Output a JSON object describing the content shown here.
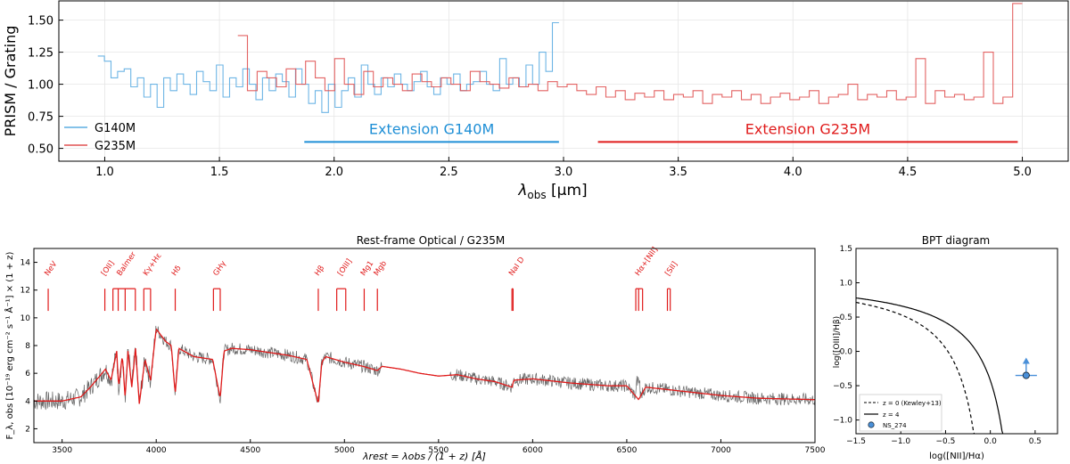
{
  "chart_data": [
    {
      "type": "line",
      "ylabel": "PRISM / Grating",
      "xlabel_main": "λ",
      "xlabel_sub": "obs",
      "xlabel_unit": " [μm]",
      "xlim": [
        0.8,
        5.2
      ],
      "ylim": [
        0.4,
        1.65
      ],
      "xticks": [
        "1.0",
        "1.5",
        "2.0",
        "2.5",
        "3.0",
        "3.5",
        "4.0",
        "4.5",
        "5.0"
      ],
      "yticks": [
        "0.50",
        "0.75",
        "1.00",
        "1.25",
        "1.50"
      ],
      "grid": true,
      "legend_position": "lower-left",
      "series": [
        {
          "name": "G140M",
          "color": "#5dade2",
          "x_range": [
            0.97,
            2.98
          ],
          "values": [
            1.22,
            1.18,
            1.05,
            1.1,
            1.12,
            0.98,
            1.05,
            0.9,
            1.0,
            0.82,
            1.05,
            0.95,
            1.08,
            1.0,
            0.92,
            1.1,
            1.02,
            0.95,
            1.15,
            0.9,
            1.05,
            0.98,
            1.12,
            1.0,
            0.88,
            1.05,
            0.95,
            1.08,
            1.02,
            0.9,
            1.12,
            1.0,
            0.85,
            0.95,
            0.78,
            1.0,
            0.82,
            0.95,
            1.05,
            0.9,
            1.15,
            1.0,
            0.92,
            1.05,
            0.98,
            1.08,
            1.0,
            0.95,
            1.02,
            1.1,
            0.98,
            0.92,
            1.05,
            1.0,
            1.08,
            0.95,
            1.0,
            1.02,
            1.1,
            1.0,
            0.95,
            1.2,
            1.0,
            1.05,
            0.98,
            1.15,
            1.0,
            1.25,
            1.1,
            1.48
          ]
        },
        {
          "name": "G235M",
          "color": "#e05252",
          "x_range": [
            1.58,
            5.0
          ],
          "values": [
            1.38,
            0.95,
            1.1,
            1.05,
            0.98,
            1.12,
            1.0,
            1.18,
            1.05,
            0.95,
            1.2,
            1.0,
            0.92,
            1.1,
            0.98,
            1.05,
            1.0,
            0.95,
            1.08,
            1.02,
            0.98,
            1.05,
            1.0,
            0.95,
            1.1,
            1.02,
            1.0,
            0.97,
            1.05,
            0.98,
            1.0,
            0.95,
            1.02,
            0.98,
            1.0,
            0.95,
            0.92,
            0.98,
            0.9,
            0.95,
            0.88,
            0.93,
            0.9,
            0.95,
            0.88,
            0.92,
            0.9,
            0.95,
            0.85,
            0.92,
            0.9,
            0.95,
            0.88,
            0.92,
            0.85,
            0.9,
            0.93,
            0.88,
            0.9,
            0.95,
            0.85,
            0.9,
            0.92,
            1.0,
            0.88,
            0.92,
            0.9,
            0.95,
            0.88,
            0.9,
            1.2,
            0.85,
            0.95,
            0.9,
            0.92,
            0.88,
            0.9,
            1.25,
            0.85,
            0.9,
            1.63
          ]
        }
      ],
      "annotations": [
        {
          "text": "Extension G140M",
          "color": "#1f8fd6",
          "x_range": [
            1.87,
            2.98
          ],
          "y": 0.55
        },
        {
          "text": "Extension G235M",
          "color": "#e01b1b",
          "x_range": [
            3.15,
            4.98
          ],
          "y": 0.55
        }
      ]
    },
    {
      "type": "line",
      "title": "Rest-frame Optical / G235M",
      "ylabel": "F_λ, obs [10⁻¹⁹ erg cm⁻² s⁻¹ Å⁻¹] × (1 + z)",
      "xlabel": "λrest = λobs / (1 + z) [Å]",
      "xlim": [
        3350,
        7500
      ],
      "ylim": [
        1,
        15
      ],
      "xticks": [
        "3500",
        "4000",
        "4500",
        "5000",
        "5500",
        "6000",
        "6500",
        "7000",
        "7500"
      ],
      "yticks": [
        "2",
        "4",
        "6",
        "8",
        "10",
        "12",
        "14"
      ],
      "series": [
        {
          "name": "data",
          "color": "#333333"
        },
        {
          "name": "model",
          "color": "#e01b1b",
          "x": [
            3350,
            3500,
            3600,
            3650,
            3700,
            3730,
            3760,
            3790,
            3800,
            3820,
            3835,
            3850,
            3870,
            3890,
            3910,
            3940,
            3970,
            3990,
            4000,
            4050,
            4080,
            4101,
            4120,
            4200,
            4300,
            4340,
            4360,
            4400,
            4500,
            4600,
            4700,
            4800,
            4861,
            4880,
            4900,
            5000,
            5100,
            5175,
            5200,
            5300,
            5400,
            5500,
            5600,
            5700,
            5800,
            5890,
            5900,
            6000,
            6200,
            6400,
            6500,
            6563,
            6600,
            6800,
            7000,
            7200,
            7500
          ],
          "values": [
            4.0,
            4.0,
            4.3,
            5.0,
            5.8,
            6.3,
            5.5,
            7.6,
            5.0,
            7.3,
            4.2,
            7.6,
            5.0,
            7.8,
            3.8,
            7.0,
            5.5,
            8.0,
            9.2,
            8.3,
            8.0,
            4.5,
            7.8,
            7.2,
            7.0,
            4.2,
            7.6,
            7.8,
            7.7,
            7.5,
            7.3,
            7.0,
            3.8,
            6.8,
            7.2,
            6.8,
            6.5,
            6.2,
            6.5,
            6.3,
            6.0,
            5.8,
            5.9,
            5.6,
            5.4,
            5.0,
            5.5,
            5.6,
            5.3,
            5.1,
            5.1,
            4.1,
            5.0,
            4.7,
            4.4,
            4.2,
            4.1
          ]
        }
      ],
      "lines": [
        {
          "label": "NeV",
          "x": [
            3426
          ],
          "label_x": 3426
        },
        {
          "label": "[OII]",
          "x": [
            3727
          ],
          "label_x": 3727
        },
        {
          "label": "Balmer",
          "x": [
            3770,
            3798,
            3835,
            3889
          ],
          "label_x": 3810
        },
        {
          "label": "Kγ+Hε",
          "x": [
            3934,
            3970
          ],
          "label_x": 3950
        },
        {
          "label": "Hδ",
          "x": [
            4101
          ],
          "label_x": 4101
        },
        {
          "label": "GHγ",
          "x": [
            4304,
            4340
          ],
          "label_x": 4322
        },
        {
          "label": "Hβ",
          "x": [
            4861
          ],
          "label_x": 4861
        },
        {
          "label": "[OIII]",
          "x": [
            4959,
            5007
          ],
          "label_x": 4983
        },
        {
          "label": "Mg1",
          "x": [
            5105
          ],
          "label_x": 5105
        },
        {
          "label": "Mgb",
          "x": [
            5175
          ],
          "label_x": 5175
        },
        {
          "label": "NaI D",
          "x": [
            5890,
            5896
          ],
          "label_x": 5893
        },
        {
          "label": "Hα+[NII]",
          "x": [
            6548,
            6563,
            6584
          ],
          "label_x": 6563
        },
        {
          "label": "[SII]",
          "x": [
            6716,
            6731
          ],
          "label_x": 6723
        }
      ]
    },
    {
      "type": "scatter",
      "title": "BPT diagram",
      "xlabel": "log([NII]/Hα)",
      "ylabel": "log([OIII]/Hβ)",
      "xlim": [
        -1.5,
        0.75
      ],
      "ylim": [
        -1.2,
        1.5
      ],
      "xticks": [
        "−1.5",
        "−1.0",
        "−0.5",
        "0.0",
        "0.5"
      ],
      "yticks": [
        "−1.0",
        "−0.5",
        "0.0",
        "0.5",
        "1.0",
        "1.5"
      ],
      "legend_position": "lower-left",
      "legend": [
        "z = 0 (Kewley+13)",
        "z = 4",
        "NS_274"
      ],
      "point": {
        "name": "NS_274",
        "x": 0.4,
        "y": -0.35,
        "xerr": 0.12,
        "y_lower_limit": true,
        "color": "#4a90d9"
      },
      "curves": [
        {
          "name": "z = 0 (Kewley+13)",
          "style": "dashed",
          "a": 0.61,
          "b": 0.08,
          "c": 1.1
        },
        {
          "name": "z = 4",
          "style": "solid",
          "a": 0.61,
          "b": 0.4,
          "c": 1.1
        }
      ]
    }
  ]
}
